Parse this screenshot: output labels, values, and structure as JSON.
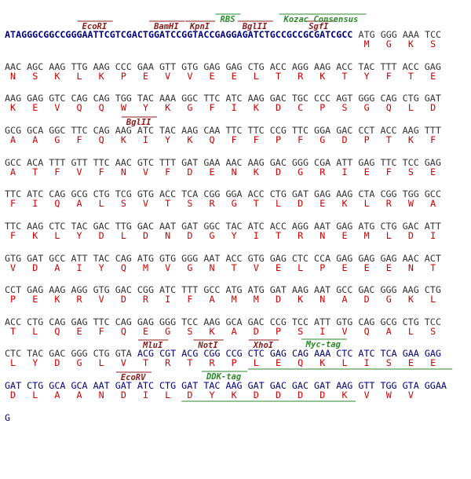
{
  "lines": [
    {
      "annotations": [
        {
          "label": "EcoRI",
          "color": "#8b1a1a"
        },
        {
          "label": "BamHI",
          "color": "#8b1a1a"
        },
        {
          "label": "KpnI",
          "color": "#8b1a1a"
        },
        {
          "label": "BglII",
          "color": "#8b1a1a"
        },
        {
          "label": "SgfI",
          "color": "#8b1a1a"
        },
        {
          "label": "RBS",
          "color": "#2a8a2a"
        },
        {
          "label": "Kozac Consensus",
          "color": "#2a8a2a"
        }
      ],
      "dna": [
        {
          "text": "ATAGGGCGGCCGGGAATTCGTCGACTGGATCCGGTACCGAGGAGATCTGCCGCCGCGATCGCC",
          "color": "#00007f"
        },
        {
          "text": "ATG GGG AAA TCC",
          "color": "#333333"
        }
      ],
      "aa": "MGKS"
    },
    {
      "annotations": [],
      "dna": [
        {
          "text": "AAC AGC AAG TTG AAG CCC GAA GTT GTG GAG GAG CTG ACC AGG AAG ACC TAC TTT ACC GAG",
          "color": "#333333"
        }
      ],
      "aa": "NSKLKPEVVEELTRKTYFTE"
    },
    {
      "annotations": [],
      "dna": [
        {
          "text": "AAG GAG GTC CAG CAG TGG TAC AAA GGC TTC ATC AAG GAC TGC CCC AGT GGG CAG CTG GAT",
          "color": "#333333"
        }
      ],
      "aa": "KEVQQWYKGFIKDCPSGQLD"
    },
    {
      "annotations": [
        {
          "label": "BglII",
          "color": "#8b1a1a"
        }
      ],
      "dna": [
        {
          "text": "GCG GCA GGC TTC CAG AAG ATC TAC AAG CAA TTC TTC CCG TTC GGA GAC CCT ACC AAG TTT",
          "color": "#333333"
        }
      ],
      "aa": "AAGFQKIYKQFFPFGDPTKF"
    },
    {
      "annotations": [],
      "dna": [
        {
          "text": "GCC ACA TTT GTT TTC AAC GTC TTT GAT GAA AAC AAG GAC GGG CGA ATT GAG TTC TCC GAG",
          "color": "#333333"
        }
      ],
      "aa": "ATFVFNVFDENKDGRIEFSE"
    },
    {
      "annotations": [],
      "dna": [
        {
          "text": "TTC ATC CAG GCG CTG TCG GTG ACC TCA CGG GGA ACC CTG GAT GAG AAG CTA CGG TGG GCC",
          "color": "#333333"
        }
      ],
      "aa": "FIQALSVTSRGTLDEKLRWA"
    },
    {
      "annotations": [],
      "dna": [
        {
          "text": "TTC AAG CTC TAC GAC TTG GAC AAT GAT GGC TAC ATC ACC AGG AAT GAG ATG CTG GAC ATT",
          "color": "#333333"
        }
      ],
      "aa": "FKLYDLDNDGYITRNEMLDI"
    },
    {
      "annotations": [],
      "dna": [
        {
          "text": "GTG GAT GCC ATT TAC CAG ATG GTG GGG AAT ACC GTG GAG CTC CCA GAG GAG GAG AAC ACT",
          "color": "#333333"
        }
      ],
      "aa": "VDAIYQMVGNTVELPEEENT"
    },
    {
      "annotations": [],
      "dna": [
        {
          "text": "CCT GAG AAG AGG GTG GAC CGG ATC TTT GCC ATG ATG GAT AAG AAT GCC GAC GGG AAG CTG",
          "color": "#333333"
        }
      ],
      "aa": "PEKRVDRIFAMMDKNADGKL"
    },
    {
      "annotations": [],
      "dna": [
        {
          "text": "ACC CTG CAG GAG TTC CAG GAG GGG TCC AAG GCA GAC CCG TCC ATT GTG CAG GCG CTG TCC",
          "color": "#333333"
        }
      ],
      "aa": "TLQEFQEGSKADPSIVQALS"
    },
    {
      "annotations": [
        {
          "label": "MluI",
          "color": "#8b1a1a"
        },
        {
          "label": "NotI",
          "color": "#8b1a1a"
        },
        {
          "label": "XhoI",
          "color": "#8b1a1a"
        },
        {
          "label": "Myc-tag",
          "color": "#2a8a2a"
        }
      ],
      "dna": [
        {
          "text": "CTC TAC GAC GGG CTG GTA",
          "color": "#333333"
        },
        {
          "text": "ACG CGT ACG CGG CCG CTC GAG CAG AAA CTC ATC TCA GAA GAG",
          "color": "#00007f"
        }
      ],
      "aa": "LYDGLVTRTRPLEQKLISEE"
    },
    {
      "annotations": [
        {
          "label": "EcoRV",
          "color": "#8b1a1a"
        },
        {
          "label": "DDK-tag",
          "color": "#2a8a2a"
        }
      ],
      "dna": [
        {
          "text": "GAT CTG GCA GCA AAT GAT ATC CTG GAT TAC AAG GAT GAC GAC GAT AAG GTT TGG GTA GGAA",
          "color": "#00007f"
        }
      ],
      "aa": "DLAANDILDYKDDDDKVWV"
    },
    {
      "annotations": [],
      "dna": [
        {
          "text": "G",
          "color": "#00007f"
        }
      ],
      "aa": ""
    }
  ]
}
